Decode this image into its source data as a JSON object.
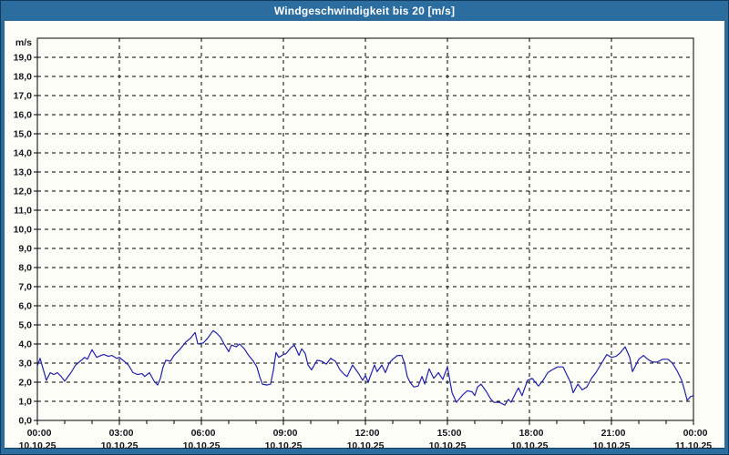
{
  "window": {
    "title": "Windgeschwindigkeit bis 20 [m/s]"
  },
  "colors": {
    "frame_bg": "#2b6d9e",
    "frame_line": "#113a5c",
    "panel_bg": "#fdfdf7",
    "grid": "#000000",
    "axis": "#000000",
    "line": "#2121aa",
    "label_text": "#15151f",
    "title_text": "#ffffff"
  },
  "chart_data": {
    "type": "line",
    "title": "Windgeschwindigkeit bis 20 [m/s]",
    "y_unit": "m/s",
    "ylim": [
      0,
      20
    ],
    "xlim_hours": [
      0,
      24
    ],
    "grid": "dashed",
    "legend_position": "none",
    "y_tick_labels": [
      "0,0",
      "1,0",
      "2,0",
      "3,0",
      "4,0",
      "5,0",
      "6,0",
      "7,0",
      "8,0",
      "9,0",
      "10,0",
      "11,0",
      "12,0",
      "13,0",
      "14,0",
      "15,0",
      "16,0",
      "17,0",
      "18,0",
      "19,0"
    ],
    "x_minor_tick_interval_hours": 1,
    "x_ticks": [
      {
        "hour": 0,
        "time": "00:00",
        "date": "10.10.25"
      },
      {
        "hour": 3,
        "time": "03:00",
        "date": "10.10.25"
      },
      {
        "hour": 6,
        "time": "06:00",
        "date": "10.10.25"
      },
      {
        "hour": 9,
        "time": "09:00",
        "date": "10.10.25"
      },
      {
        "hour": 12,
        "time": "12:00",
        "date": "10.10.25"
      },
      {
        "hour": 15,
        "time": "15:00",
        "date": "10.10.25"
      },
      {
        "hour": 18,
        "time": "18:00",
        "date": "10.10.25"
      },
      {
        "hour": 21,
        "time": "21:00",
        "date": "10.10.25"
      },
      {
        "hour": 24,
        "time": "00:00",
        "date": "11.10.25"
      }
    ],
    "series": [
      {
        "name": "Windgeschwindigkeit",
        "unit": "m/s",
        "color": "#2121aa",
        "points": [
          [
            0,
            2.85
          ],
          [
            0.1,
            3.25
          ],
          [
            0.33,
            2.1
          ],
          [
            0.47,
            2.5
          ],
          [
            0.6,
            2.4
          ],
          [
            0.73,
            2.5
          ],
          [
            0.87,
            2.3
          ],
          [
            1,
            2.05
          ],
          [
            1.23,
            2.5
          ],
          [
            1.4,
            2.9
          ],
          [
            1.57,
            3.1
          ],
          [
            1.73,
            3.3
          ],
          [
            1.83,
            3.2
          ],
          [
            2,
            3.7
          ],
          [
            2.17,
            3.3
          ],
          [
            2.33,
            3.4
          ],
          [
            2.43,
            3.45
          ],
          [
            2.6,
            3.35
          ],
          [
            2.73,
            3.4
          ],
          [
            2.9,
            3.25
          ],
          [
            3,
            3.3
          ],
          [
            3.17,
            3.1
          ],
          [
            3.33,
            2.9
          ],
          [
            3.5,
            2.5
          ],
          [
            3.67,
            2.4
          ],
          [
            3.83,
            2.45
          ],
          [
            3.93,
            2.3
          ],
          [
            4.1,
            2.5
          ],
          [
            4.27,
            2.05
          ],
          [
            4.4,
            1.85
          ],
          [
            4.5,
            2.2
          ],
          [
            4.6,
            2.8
          ],
          [
            4.7,
            3.15
          ],
          [
            4.87,
            3.1
          ],
          [
            5,
            3.4
          ],
          [
            5.23,
            3.75
          ],
          [
            5.43,
            4.1
          ],
          [
            5.6,
            4.3
          ],
          [
            5.77,
            4.6
          ],
          [
            5.87,
            4
          ],
          [
            6.07,
            4.05
          ],
          [
            6.23,
            4.3
          ],
          [
            6.43,
            4.7
          ],
          [
            6.57,
            4.55
          ],
          [
            6.7,
            4.35
          ],
          [
            6.83,
            4
          ],
          [
            7,
            3.6
          ],
          [
            7.1,
            3.95
          ],
          [
            7.27,
            3.85
          ],
          [
            7.4,
            4
          ],
          [
            7.57,
            3.75
          ],
          [
            7.73,
            3.4
          ],
          [
            7.9,
            3.1
          ],
          [
            8.03,
            2.8
          ],
          [
            8.13,
            2.3
          ],
          [
            8.23,
            1.9
          ],
          [
            8.4,
            1.85
          ],
          [
            8.53,
            1.9
          ],
          [
            8.63,
            2.6
          ],
          [
            8.73,
            3.55
          ],
          [
            8.83,
            3.3
          ],
          [
            9,
            3.45
          ],
          [
            9.1,
            3.5
          ],
          [
            9.27,
            3.8
          ],
          [
            9.4,
            3.95
          ],
          [
            9.57,
            3.4
          ],
          [
            9.67,
            3.75
          ],
          [
            9.8,
            3.5
          ],
          [
            9.9,
            2.9
          ],
          [
            10.03,
            2.65
          ],
          [
            10.23,
            3.15
          ],
          [
            10.4,
            3.1
          ],
          [
            10.57,
            2.95
          ],
          [
            10.73,
            3.25
          ],
          [
            10.9,
            3.1
          ],
          [
            11.07,
            2.65
          ],
          [
            11.23,
            2.4
          ],
          [
            11.33,
            2.3
          ],
          [
            11.53,
            2.9
          ],
          [
            11.73,
            2.5
          ],
          [
            11.9,
            2.1
          ],
          [
            12,
            2.35
          ],
          [
            12.1,
            2
          ],
          [
            12.33,
            2.9
          ],
          [
            12.43,
            2.55
          ],
          [
            12.6,
            2.9
          ],
          [
            12.73,
            2.5
          ],
          [
            12.87,
            3
          ],
          [
            13,
            3.2
          ],
          [
            13.17,
            3.4
          ],
          [
            13.33,
            3.4
          ],
          [
            13.43,
            3
          ],
          [
            13.53,
            2.3
          ],
          [
            13.63,
            2
          ],
          [
            13.77,
            1.75
          ],
          [
            13.93,
            1.8
          ],
          [
            14.07,
            2.3
          ],
          [
            14.17,
            1.9
          ],
          [
            14.33,
            2.7
          ],
          [
            14.5,
            2.2
          ],
          [
            14.67,
            2.5
          ],
          [
            14.83,
            2.15
          ],
          [
            15,
            2.8
          ],
          [
            15.17,
            1.45
          ],
          [
            15.33,
            0.95
          ],
          [
            15.57,
            1.35
          ],
          [
            15.73,
            1.55
          ],
          [
            15.9,
            1.5
          ],
          [
            16,
            1.3
          ],
          [
            16.1,
            1.75
          ],
          [
            16.23,
            1.9
          ],
          [
            16.43,
            1.5
          ],
          [
            16.57,
            1.15
          ],
          [
            16.7,
            0.95
          ],
          [
            16.9,
            0.95
          ],
          [
            17.1,
            0.8
          ],
          [
            17.23,
            1.1
          ],
          [
            17.33,
            0.95
          ],
          [
            17.5,
            1.45
          ],
          [
            17.6,
            1.7
          ],
          [
            17.73,
            1.3
          ],
          [
            17.93,
            2.1
          ],
          [
            18.1,
            2.2
          ],
          [
            18.33,
            1.8
          ],
          [
            18.5,
            2.1
          ],
          [
            18.67,
            2.5
          ],
          [
            18.83,
            2.65
          ],
          [
            19.03,
            2.8
          ],
          [
            19.23,
            2.8
          ],
          [
            19.5,
            2
          ],
          [
            19.6,
            1.45
          ],
          [
            19.77,
            1.9
          ],
          [
            19.93,
            1.6
          ],
          [
            20.1,
            1.75
          ],
          [
            20.27,
            2.2
          ],
          [
            20.43,
            2.5
          ],
          [
            20.6,
            2.9
          ],
          [
            20.83,
            3.45
          ],
          [
            21,
            3.3
          ],
          [
            21.17,
            3.35
          ],
          [
            21.33,
            3.55
          ],
          [
            21.5,
            3.85
          ],
          [
            21.67,
            3.3
          ],
          [
            21.77,
            2.55
          ],
          [
            22,
            3.2
          ],
          [
            22.17,
            3.4
          ],
          [
            22.33,
            3.2
          ],
          [
            22.5,
            3.05
          ],
          [
            22.67,
            3.05
          ],
          [
            22.87,
            3.2
          ],
          [
            23.07,
            3.2
          ],
          [
            23.23,
            3
          ],
          [
            23.4,
            2.6
          ],
          [
            23.57,
            2.1
          ],
          [
            23.67,
            1.6
          ],
          [
            23.77,
            1.05
          ],
          [
            23.9,
            1.25
          ],
          [
            24,
            1.3
          ]
        ]
      }
    ]
  }
}
